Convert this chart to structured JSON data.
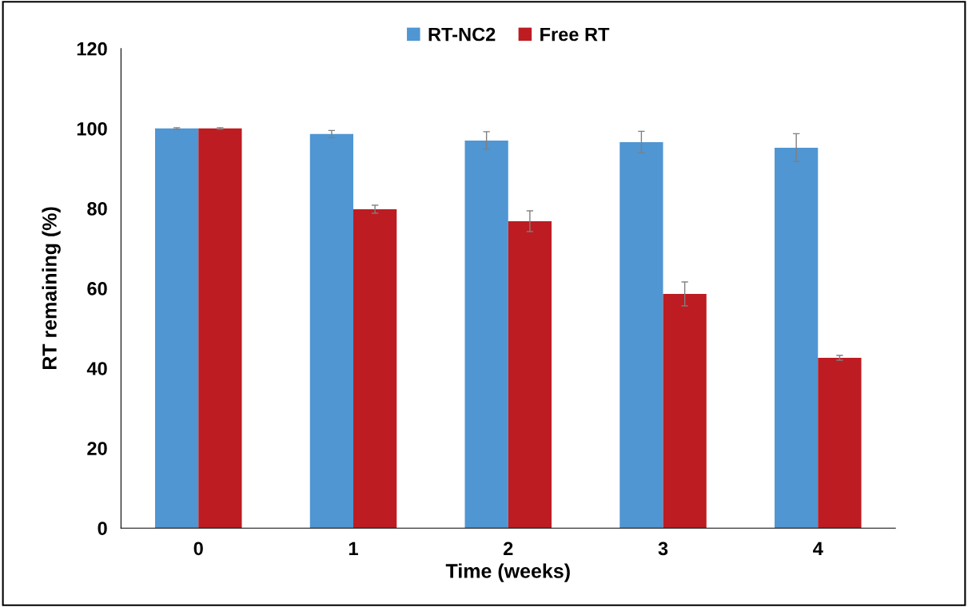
{
  "chart_data": {
    "type": "bar",
    "xlabel": "Time (weeks)",
    "ylabel": "RT remaining (%)",
    "categories": [
      "0",
      "1",
      "2",
      "3",
      "4"
    ],
    "series": [
      {
        "name": "RT-NC2",
        "color": "#4f96d3",
        "values": [
          100,
          98.6,
          97,
          96.6,
          95.2
        ],
        "errors": [
          0.2,
          0.9,
          2.2,
          2.7,
          3.5
        ]
      },
      {
        "name": "Free RT",
        "color": "#bc1c22",
        "values": [
          100,
          79.8,
          76.8,
          58.6,
          42.6
        ],
        "errors": [
          0.2,
          1,
          2.6,
          3,
          0.6
        ]
      }
    ],
    "ylim": [
      0,
      120
    ],
    "yticks": [
      0,
      20,
      40,
      60,
      80,
      100,
      120
    ],
    "grid": false,
    "legend": "top"
  }
}
